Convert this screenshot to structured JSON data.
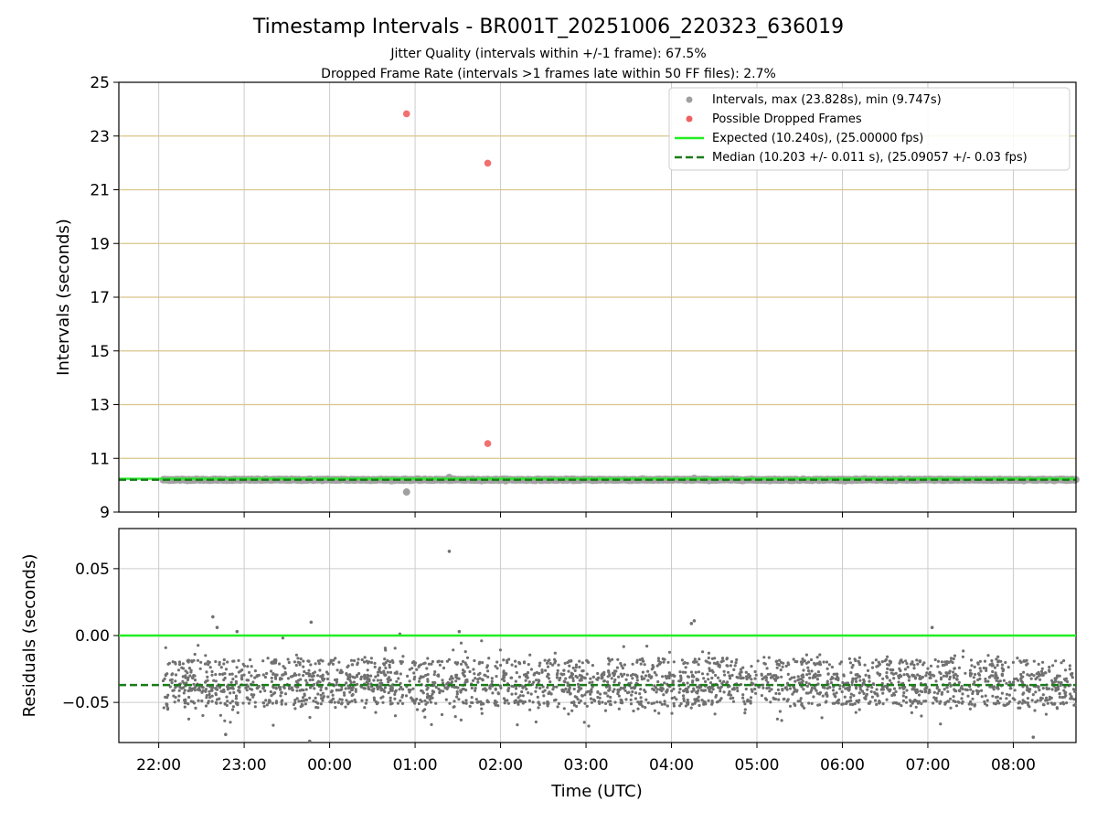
{
  "title": "Timestamp Intervals - BR001T_20251006_220323_636019",
  "subtitle_jitter": "Jitter Quality (intervals within +/-1 frame): 67.5%",
  "subtitle_dropped": "Dropped Frame Rate (intervals >1 frames late within 50 FF files): 2.7%",
  "colors": {
    "intervals": "#a0a0a0",
    "dropped": "#f06060",
    "expected": "#22ee22",
    "median": "#1a7a1a",
    "residuals": "#707070",
    "hgrid_top": "#d9c48a",
    "grid": "#cccccc"
  },
  "chart_data": [
    {
      "type": "scatter",
      "panel": "intervals",
      "xlabel": "",
      "ylabel": "Intervals (seconds)",
      "xlim": [
        "2025-10-06T21:32",
        "2025-10-07T08:44"
      ],
      "ylim": [
        9,
        25
      ],
      "yticks": [
        "9",
        "11",
        "13",
        "15",
        "17",
        "19",
        "21",
        "23",
        "25"
      ],
      "grid": true,
      "legend_position": "top-right",
      "legend": {
        "intervals": "Intervals, max (23.828s), min (9.747s)",
        "dropped": "Possible Dropped Frames",
        "expected": "Expected (10.240s), (25.00000 fps)",
        "median": "Median (10.203 +/- 0.011 s), (25.09057 +/- 0.03 fps)"
      },
      "series": [
        {
          "name": "Intervals, max (23.828s), min (9.747s)",
          "description": "dense band of intervals from 22:03 to 08:44",
          "x_range": [
            "2025-10-06T22:03",
            "2025-10-07T08:44"
          ],
          "y_range": [
            10.14,
            10.28
          ],
          "outliers": [
            {
              "x": "2025-10-07T00:54",
              "y": 9.747
            },
            {
              "x": "2025-10-07T01:24",
              "y": 10.29
            },
            {
              "x": "2025-10-07T04:16",
              "y": 10.26
            }
          ]
        },
        {
          "name": "Possible Dropped Frames",
          "points": [
            {
              "x": "2025-10-07T00:54",
              "y": 23.828
            },
            {
              "x": "2025-10-07T01:51",
              "y": 21.99
            },
            {
              "x": "2025-10-07T01:51",
              "y": 11.55
            }
          ]
        },
        {
          "name": "Expected (10.240s), (25.00000 fps)",
          "y": 10.24
        },
        {
          "name": "Median (10.203 +/- 0.011 s), (25.09057 +/- 0.03 fps)",
          "y": 10.203
        }
      ]
    },
    {
      "type": "scatter",
      "panel": "residuals",
      "xlabel": "Time (UTC)",
      "ylabel": "Residuals (seconds)",
      "xlim": [
        "2025-10-06T21:32",
        "2025-10-07T08:44"
      ],
      "ylim": [
        -0.08,
        0.08
      ],
      "yticks": [
        "−0.05",
        "0.00",
        "0.05"
      ],
      "xticks": [
        "22:00",
        "23:00",
        "00:00",
        "01:00",
        "02:00",
        "03:00",
        "04:00",
        "05:00",
        "06:00",
        "07:00",
        "08:00"
      ],
      "grid": true,
      "series": [
        {
          "name": "",
          "description": "residuals of interval vs expected, clustered around the median",
          "x_range": [
            "2025-10-06T22:03",
            "2025-10-07T08:44"
          ],
          "y_center": -0.037,
          "y_range": [
            -0.078,
            0.012
          ],
          "outliers": [
            {
              "x": "2025-10-06T22:38",
              "y": 0.014
            },
            {
              "x": "2025-10-06T22:41",
              "y": 0.006
            },
            {
              "x": "2025-10-06T22:55",
              "y": 0.003
            },
            {
              "x": "2025-10-06T23:47",
              "y": 0.01
            },
            {
              "x": "2025-10-07T01:24",
              "y": 0.063
            },
            {
              "x": "2025-10-07T01:31",
              "y": 0.003
            },
            {
              "x": "2025-10-07T04:16",
              "y": 0.011
            },
            {
              "x": "2025-10-07T04:14",
              "y": 0.009
            },
            {
              "x": "2025-10-07T07:03",
              "y": 0.006
            },
            {
              "x": "2025-10-06T22:47",
              "y": -0.074
            },
            {
              "x": "2025-10-06T23:46",
              "y": -0.079
            },
            {
              "x": "2025-10-07T08:14",
              "y": -0.076
            }
          ]
        },
        {
          "name": "",
          "y": 0.0
        },
        {
          "name": "",
          "y": -0.037
        }
      ]
    }
  ]
}
